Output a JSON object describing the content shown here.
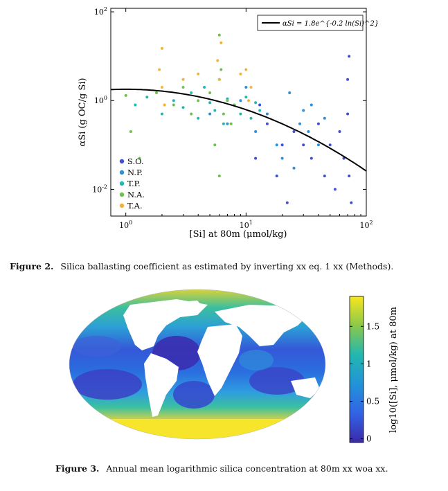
{
  "figure2": {
    "caption_label": "Figure 2.",
    "caption_text": "Silica ballasting coefficient as estimated by inverting xx eq. 1 xx (Methods)."
  },
  "figure3": {
    "caption_label": "Figure 3.",
    "caption_text": "Annual mean logarithmic silica concentration at 80m xx woa xx.",
    "colorbar": {
      "label": "log10([Si], μmol/kg) at 80m",
      "ticks": [
        "0",
        "0.5",
        "1",
        "1.5"
      ],
      "tick_values": [
        0,
        0.5,
        1,
        1.5
      ],
      "range": [
        -0.05,
        1.9
      ]
    }
  },
  "chart_data": {
    "type": "scatter",
    "title": "",
    "xlabel": "[Si] at 80m (μmol/kg)",
    "ylabel": "αSi (g OC/g Si)",
    "xscale": "log",
    "yscale": "log",
    "xlim": [
      0.75,
      100
    ],
    "ylim": [
      0.0025,
      120
    ],
    "x_ticks": [
      1,
      10,
      100
    ],
    "x_tick_labels": [
      "10^0",
      "10^1",
      "10^2"
    ],
    "y_ticks": [
      0.01,
      1,
      100
    ],
    "y_tick_labels": [
      "10^-2",
      "10^0",
      "10^2"
    ],
    "legend_placement": "lower-left",
    "fit_legend": "αSi = 1.8e^{-0.2 ln(Si)^2}",
    "fit_legend_placement": "top-right",
    "fit_curve": {
      "a": 1.8,
      "b": -0.2,
      "color": "#000000"
    },
    "series": [
      {
        "name": "S.O.",
        "color": "#3f4fd6",
        "x": [
          12,
          13,
          15,
          18,
          20,
          22,
          25,
          30,
          35,
          40,
          45,
          50,
          55,
          60,
          65,
          70,
          70,
          72,
          72,
          75
        ],
        "y": [
          0.05,
          0.8,
          0.3,
          0.02,
          0.1,
          0.005,
          0.2,
          0.1,
          0.05,
          0.3,
          0.02,
          0.1,
          0.01,
          0.2,
          0.05,
          3,
          0.5,
          0.02,
          10,
          0.005
        ]
      },
      {
        "name": "N.P.",
        "color": "#2e8ed8",
        "x": [
          5,
          7,
          9,
          10,
          12,
          15,
          18,
          20,
          23,
          25,
          28,
          30,
          33,
          35,
          40,
          45
        ],
        "y": [
          0.5,
          0.3,
          1,
          2,
          0.2,
          0.5,
          0.1,
          0.05,
          1.5,
          0.03,
          0.3,
          0.6,
          0.2,
          0.8,
          0.1,
          0.4
        ]
      },
      {
        "name": "T.P.",
        "color": "#1fb8b4",
        "x": [
          1.2,
          1.5,
          2,
          2.5,
          3,
          3.5,
          4,
          4.5,
          5,
          5.5,
          6,
          6.5,
          7,
          8,
          9,
          10,
          11,
          12,
          13
        ],
        "y": [
          0.8,
          1.2,
          0.5,
          1,
          0.7,
          1.5,
          0.4,
          2,
          0.9,
          0.6,
          3,
          0.3,
          1.1,
          0.8,
          0.5,
          1.2,
          0.4,
          0.9,
          0.6
        ]
      },
      {
        "name": "N.A.",
        "color": "#6cc24a",
        "x": [
          1,
          1.1,
          1.3,
          1.8,
          2.5,
          3,
          3.5,
          4,
          5,
          5.5,
          6,
          6,
          6.2,
          6.5,
          7,
          7.5,
          8
        ],
        "y": [
          1.3,
          0.2,
          0.05,
          1.5,
          0.8,
          2,
          0.5,
          1,
          1.5,
          0.1,
          30,
          0.02,
          5,
          0.5,
          1,
          0.3,
          0.8
        ]
      },
      {
        "name": "T.A.",
        "color": "#f2b33a",
        "x": [
          1.9,
          2,
          2,
          2.1,
          3,
          4,
          5.8,
          6,
          6.2,
          9,
          10,
          10.5,
          11
        ],
        "y": [
          5,
          2,
          15,
          0.8,
          3,
          4,
          8,
          3,
          20,
          4,
          5,
          1,
          2
        ]
      }
    ]
  }
}
